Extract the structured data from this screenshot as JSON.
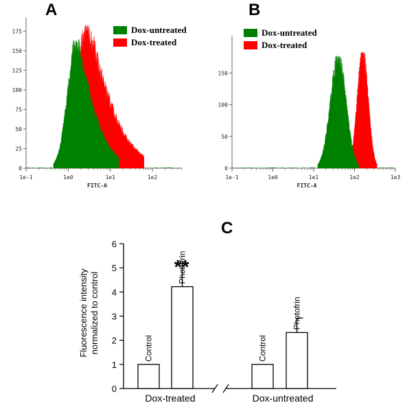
{
  "chart_data": [
    {
      "panel": "A",
      "type": "area",
      "xlabel": "FITC-A",
      "xscale": "log",
      "x_ticks": [
        "1e-1",
        "1e0",
        "1e1",
        "1e2"
      ],
      "y_ticks": [
        0,
        25,
        50,
        75,
        100,
        125,
        150,
        175
      ],
      "ylim": [
        0,
        185
      ],
      "xlim_log10": [
        -1,
        2.7
      ],
      "legend": {
        "position": "top-right"
      },
      "series": [
        {
          "name": "Dox-untreated",
          "color": "#008000",
          "peak_log10": 0.2,
          "peak_count": 165,
          "range_log10": [
            -0.35,
            1.2
          ]
        },
        {
          "name": "Dox-treated",
          "color": "#ff0000",
          "peak_log10": 0.45,
          "peak_count": 183,
          "range_log10": [
            -0.2,
            1.8
          ]
        }
      ]
    },
    {
      "panel": "B",
      "type": "area",
      "xlabel": "FITC-A",
      "xscale": "log",
      "x_ticks": [
        "1e-1",
        "1e0",
        "1e1",
        "1e2",
        "1e3"
      ],
      "y_ticks": [
        0,
        50,
        100,
        150
      ],
      "ylim": [
        0,
        200
      ],
      "xlim_log10": [
        -1,
        3
      ],
      "legend": {
        "position": "top-left"
      },
      "series": [
        {
          "name": "Dox-untreated",
          "color": "#008000",
          "peak_log10": 1.6,
          "peak_count": 177,
          "range_log10": [
            1.1,
            2.1
          ]
        },
        {
          "name": "Dox-treated",
          "color": "#ff0000",
          "peak_log10": 2.2,
          "peak_count": 183,
          "range_log10": [
            1.85,
            2.55
          ]
        }
      ]
    },
    {
      "panel": "C",
      "type": "bar",
      "ylabel_lines": [
        "Fluorescence intensity",
        "normalized to control"
      ],
      "ylim": [
        0,
        6
      ],
      "y_ticks": [
        0,
        1,
        2,
        3,
        4,
        5,
        6
      ],
      "groups": [
        {
          "label": "Dox-treated",
          "bars": [
            {
              "label": "Control",
              "value": 1.0,
              "error": 0
            },
            {
              "label": "Photofrin",
              "value": 4.22,
              "error": 0.95,
              "significance": "**"
            }
          ]
        },
        {
          "label": "Dox-untreated",
          "bars": [
            {
              "label": "Control",
              "value": 1.0,
              "error": 0
            },
            {
              "label": "Photofrin",
              "value": 2.32,
              "error": 0.6
            }
          ]
        }
      ]
    }
  ]
}
